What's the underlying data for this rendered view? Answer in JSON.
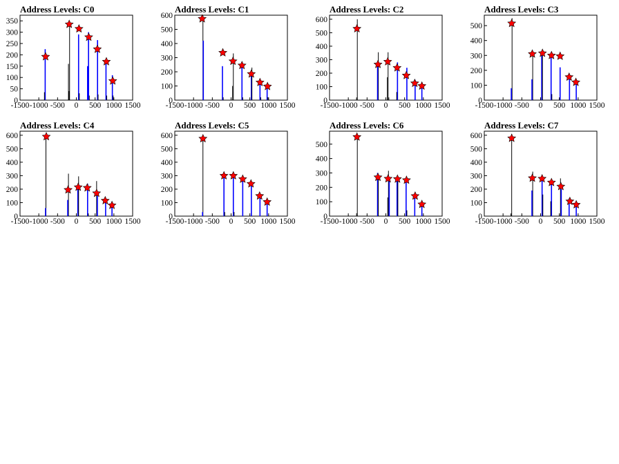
{
  "window": {
    "title": "Address Levels"
  },
  "colors": {
    "histogram": "#0000ff",
    "outline": "#000000",
    "marker": "#ff0000",
    "frame": "#000000"
  },
  "chart_data": [
    {
      "type": "bar",
      "title": "Address Levels: C0",
      "xlabel": "",
      "ylabel": "",
      "xlim": [
        -1500,
        1500
      ],
      "ylim": [
        0,
        375
      ],
      "xticks": [
        -1500,
        -1000,
        -500,
        0,
        500,
        1000,
        1500
      ],
      "yticks": [
        0,
        50,
        100,
        150,
        200,
        250,
        300,
        350
      ],
      "bins": [
        {
          "x": -830,
          "value": 225,
          "blue": true
        },
        {
          "x": -850,
          "value": 35,
          "blue": false
        },
        {
          "x": -210,
          "value": 160,
          "blue": false
        },
        {
          "x": -195,
          "value": 40,
          "blue": false
        },
        {
          "x": -180,
          "value": 340,
          "blue": false
        },
        {
          "x": 60,
          "value": 290,
          "blue": true
        },
        {
          "x": 80,
          "value": 30,
          "blue": false
        },
        {
          "x": 300,
          "value": 150,
          "blue": true
        },
        {
          "x": 325,
          "value": 300,
          "blue": true
        },
        {
          "x": 345,
          "value": 20,
          "blue": false
        },
        {
          "x": 565,
          "value": 265,
          "blue": true
        },
        {
          "x": 580,
          "value": 25,
          "blue": false
        },
        {
          "x": 790,
          "value": 175,
          "blue": true
        },
        {
          "x": 810,
          "value": 20,
          "blue": false
        },
        {
          "x": 960,
          "value": 110,
          "blue": true
        },
        {
          "x": 980,
          "value": 20,
          "blue": false
        }
      ],
      "peaks": [
        {
          "x": -820,
          "y": 192
        },
        {
          "x": -190,
          "y": 335
        },
        {
          "x": 70,
          "y": 315
        },
        {
          "x": 330,
          "y": 278
        },
        {
          "x": 560,
          "y": 225
        },
        {
          "x": 800,
          "y": 170
        },
        {
          "x": 970,
          "y": 85
        }
      ]
    },
    {
      "type": "bar",
      "title": "Address Levels: C1",
      "xlabel": "",
      "ylabel": "",
      "xlim": [
        -1500,
        1500
      ],
      "ylim": [
        0,
        600
      ],
      "xticks": [
        -1500,
        -1000,
        -500,
        0,
        500,
        1000,
        1500
      ],
      "yticks": [
        0,
        100,
        200,
        300,
        400,
        500,
        600
      ],
      "bins": [
        {
          "x": -750,
          "value": 600,
          "blue": false
        },
        {
          "x": -740,
          "value": 420,
          "blue": true
        },
        {
          "x": -230,
          "value": 240,
          "blue": true
        },
        {
          "x": -210,
          "value": 20,
          "blue": false
        },
        {
          "x": 40,
          "value": 100,
          "blue": false
        },
        {
          "x": 60,
          "value": 330,
          "blue": false
        },
        {
          "x": 290,
          "value": 260,
          "blue": true
        },
        {
          "x": 310,
          "value": 20,
          "blue": false
        },
        {
          "x": 540,
          "value": 200,
          "blue": true
        },
        {
          "x": 555,
          "value": 230,
          "blue": false
        },
        {
          "x": 770,
          "value": 150,
          "blue": true
        },
        {
          "x": 790,
          "value": 20,
          "blue": false
        },
        {
          "x": 960,
          "value": 90,
          "blue": true
        },
        {
          "x": 980,
          "value": 20,
          "blue": false
        }
      ],
      "peaks": [
        {
          "x": -770,
          "y": 575
        },
        {
          "x": -220,
          "y": 335
        },
        {
          "x": 50,
          "y": 275
        },
        {
          "x": 290,
          "y": 245
        },
        {
          "x": 540,
          "y": 185
        },
        {
          "x": 770,
          "y": 125
        },
        {
          "x": 970,
          "y": 97
        }
      ]
    },
    {
      "type": "bar",
      "title": "Address Levels: C2",
      "xlabel": "",
      "ylabel": "",
      "xlim": [
        -1500,
        1500
      ],
      "ylim": [
        0,
        630
      ],
      "xticks": [
        -1500,
        -1000,
        -500,
        0,
        500,
        1000,
        1500
      ],
      "yticks": [
        0,
        100,
        200,
        300,
        400,
        500,
        600
      ],
      "bins": [
        {
          "x": -760,
          "value": 600,
          "blue": false
        },
        {
          "x": -780,
          "value": 20,
          "blue": false
        },
        {
          "x": -200,
          "value": 355,
          "blue": false
        },
        {
          "x": -220,
          "value": 270,
          "blue": true
        },
        {
          "x": 40,
          "value": 170,
          "blue": false
        },
        {
          "x": 60,
          "value": 355,
          "blue": false
        },
        {
          "x": 80,
          "value": 20,
          "blue": false
        },
        {
          "x": 310,
          "value": 280,
          "blue": true
        },
        {
          "x": 290,
          "value": 60,
          "blue": false
        },
        {
          "x": 560,
          "value": 240,
          "blue": true
        },
        {
          "x": 780,
          "value": 150,
          "blue": true
        },
        {
          "x": 960,
          "value": 110,
          "blue": true
        }
      ],
      "peaks": [
        {
          "x": -770,
          "y": 530
        },
        {
          "x": -210,
          "y": 265
        },
        {
          "x": 50,
          "y": 285
        },
        {
          "x": 300,
          "y": 240
        },
        {
          "x": 545,
          "y": 183
        },
        {
          "x": 770,
          "y": 125
        },
        {
          "x": 960,
          "y": 105
        }
      ]
    },
    {
      "type": "bar",
      "title": "Address Levels: C3",
      "xlabel": "",
      "ylabel": "",
      "xlim": [
        -1500,
        1500
      ],
      "ylim": [
        0,
        570
      ],
      "xticks": [
        -1500,
        -1000,
        -500,
        0,
        500,
        1000,
        1500
      ],
      "yticks": [
        0,
        100,
        200,
        300,
        400,
        500
      ],
      "bins": [
        {
          "x": -760,
          "value": 550,
          "blue": false
        },
        {
          "x": -780,
          "value": 80,
          "blue": true
        },
        {
          "x": -210,
          "value": 320,
          "blue": false
        },
        {
          "x": -230,
          "value": 140,
          "blue": true
        },
        {
          "x": 30,
          "value": 300,
          "blue": true
        },
        {
          "x": 50,
          "value": 330,
          "blue": false
        },
        {
          "x": 280,
          "value": 320,
          "blue": true
        },
        {
          "x": 300,
          "value": 40,
          "blue": false
        },
        {
          "x": 520,
          "value": 220,
          "blue": true
        },
        {
          "x": 770,
          "value": 160,
          "blue": true
        },
        {
          "x": 950,
          "value": 110,
          "blue": true
        }
      ],
      "peaks": [
        {
          "x": -770,
          "y": 515
        },
        {
          "x": -220,
          "y": 310
        },
        {
          "x": 50,
          "y": 315
        },
        {
          "x": 290,
          "y": 300
        },
        {
          "x": 520,
          "y": 295
        },
        {
          "x": 760,
          "y": 155
        },
        {
          "x": 940,
          "y": 120
        }
      ]
    },
    {
      "type": "bar",
      "title": "Address Levels: C4",
      "xlabel": "",
      "ylabel": "",
      "xlim": [
        -1500,
        1500
      ],
      "ylim": [
        0,
        630
      ],
      "xticks": [
        -1500,
        -1000,
        -500,
        0,
        500,
        1000,
        1500
      ],
      "yticks": [
        0,
        100,
        200,
        300,
        400,
        500,
        600
      ],
      "bins": [
        {
          "x": -810,
          "value": 610,
          "blue": false
        },
        {
          "x": -820,
          "value": 60,
          "blue": true
        },
        {
          "x": -210,
          "value": 315,
          "blue": false
        },
        {
          "x": -230,
          "value": 120,
          "blue": true
        },
        {
          "x": 40,
          "value": 210,
          "blue": true
        },
        {
          "x": 60,
          "value": 295,
          "blue": false
        },
        {
          "x": 300,
          "value": 240,
          "blue": true
        },
        {
          "x": 320,
          "value": 20,
          "blue": false
        },
        {
          "x": 540,
          "value": 260,
          "blue": false
        },
        {
          "x": 560,
          "value": 150,
          "blue": true
        },
        {
          "x": 780,
          "value": 130,
          "blue": true
        },
        {
          "x": 950,
          "value": 90,
          "blue": true
        }
      ],
      "peaks": [
        {
          "x": -800,
          "y": 590
        },
        {
          "x": -220,
          "y": 195
        },
        {
          "x": 50,
          "y": 215
        },
        {
          "x": 290,
          "y": 210
        },
        {
          "x": 540,
          "y": 170
        },
        {
          "x": 770,
          "y": 115
        },
        {
          "x": 950,
          "y": 80
        }
      ]
    },
    {
      "type": "bar",
      "title": "Address Levels: C5",
      "xlabel": "",
      "ylabel": "",
      "xlim": [
        -1500,
        1500
      ],
      "ylim": [
        0,
        630
      ],
      "xticks": [
        -1500,
        -1000,
        -500,
        0,
        500,
        1000,
        1500
      ],
      "yticks": [
        0,
        100,
        200,
        300,
        400,
        500,
        600
      ],
      "bins": [
        {
          "x": -750,
          "value": 600,
          "blue": false
        },
        {
          "x": -760,
          "value": 30,
          "blue": true
        },
        {
          "x": -190,
          "value": 305,
          "blue": true
        },
        {
          "x": -170,
          "value": 30,
          "blue": false
        },
        {
          "x": 60,
          "value": 290,
          "blue": true
        },
        {
          "x": 80,
          "value": 30,
          "blue": false
        },
        {
          "x": 310,
          "value": 270,
          "blue": true
        },
        {
          "x": 540,
          "value": 230,
          "blue": true
        },
        {
          "x": 770,
          "value": 150,
          "blue": true
        },
        {
          "x": 960,
          "value": 100,
          "blue": true
        }
      ],
      "peaks": [
        {
          "x": -750,
          "y": 575
        },
        {
          "x": -190,
          "y": 300
        },
        {
          "x": 60,
          "y": 300
        },
        {
          "x": 310,
          "y": 275
        },
        {
          "x": 530,
          "y": 240
        },
        {
          "x": 760,
          "y": 150
        },
        {
          "x": 960,
          "y": 105
        }
      ]
    },
    {
      "type": "bar",
      "title": "Address Levels: C6",
      "xlabel": "",
      "ylabel": "",
      "xlim": [
        -1500,
        1500
      ],
      "ylim": [
        0,
        590
      ],
      "xticks": [
        -1500,
        -1000,
        -500,
        0,
        500,
        1000,
        1500
      ],
      "yticks": [
        0,
        100,
        200,
        300,
        400,
        500
      ],
      "bins": [
        {
          "x": -760,
          "value": 560,
          "blue": false
        },
        {
          "x": -780,
          "value": 20,
          "blue": false
        },
        {
          "x": -220,
          "value": 300,
          "blue": true
        },
        {
          "x": -200,
          "value": 290,
          "blue": false
        },
        {
          "x": 50,
          "value": 130,
          "blue": false
        },
        {
          "x": 70,
          "value": 315,
          "blue": false
        },
        {
          "x": 90,
          "value": 260,
          "blue": true
        },
        {
          "x": 300,
          "value": 255,
          "blue": true
        },
        {
          "x": 320,
          "value": 240,
          "blue": false
        },
        {
          "x": 540,
          "value": 250,
          "blue": true
        },
        {
          "x": 560,
          "value": 40,
          "blue": false
        },
        {
          "x": 770,
          "value": 140,
          "blue": true
        },
        {
          "x": 960,
          "value": 90,
          "blue": true
        }
      ],
      "peaks": [
        {
          "x": -770,
          "y": 550
        },
        {
          "x": -210,
          "y": 270
        },
        {
          "x": 60,
          "y": 260
        },
        {
          "x": 310,
          "y": 258
        },
        {
          "x": 550,
          "y": 250
        },
        {
          "x": 780,
          "y": 140
        },
        {
          "x": 960,
          "y": 82
        }
      ]
    },
    {
      "type": "bar",
      "title": "Address Levels: C7",
      "xlabel": "",
      "ylabel": "",
      "xlim": [
        -1500,
        1500
      ],
      "ylim": [
        0,
        630
      ],
      "xticks": [
        -1500,
        -1000,
        -500,
        0,
        500,
        1000,
        1500
      ],
      "yticks": [
        0,
        100,
        200,
        300,
        400,
        500,
        600
      ],
      "bins": [
        {
          "x": -770,
          "value": 610,
          "blue": false
        },
        {
          "x": -790,
          "value": 20,
          "blue": false
        },
        {
          "x": -210,
          "value": 330,
          "blue": false
        },
        {
          "x": -230,
          "value": 190,
          "blue": true
        },
        {
          "x": 40,
          "value": 280,
          "blue": true
        },
        {
          "x": 60,
          "value": 160,
          "blue": false
        },
        {
          "x": 290,
          "value": 240,
          "blue": true
        },
        {
          "x": 270,
          "value": 110,
          "blue": false
        },
        {
          "x": 530,
          "value": 280,
          "blue": false
        },
        {
          "x": 550,
          "value": 200,
          "blue": true
        },
        {
          "x": 760,
          "value": 130,
          "blue": true
        },
        {
          "x": 950,
          "value": 90,
          "blue": true
        }
      ],
      "peaks": [
        {
          "x": -770,
          "y": 578
        },
        {
          "x": -220,
          "y": 282
        },
        {
          "x": 40,
          "y": 278
        },
        {
          "x": 290,
          "y": 250
        },
        {
          "x": 540,
          "y": 220
        },
        {
          "x": 780,
          "y": 110
        },
        {
          "x": 950,
          "y": 85
        }
      ]
    }
  ]
}
